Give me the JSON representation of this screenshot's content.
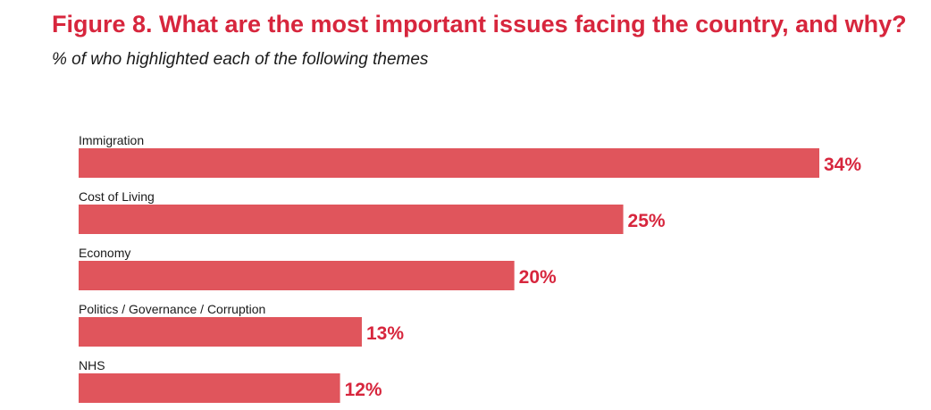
{
  "chart_data": {
    "type": "bar",
    "orientation": "horizontal",
    "title": "Figure 8. What are the most important issues facing the country, and why?",
    "subtitle": "% of who highlighted each of the following themes",
    "categories": [
      "Immigration",
      "Cost of Living",
      "Economy",
      "Politics / Governance / Corruption",
      "NHS"
    ],
    "values": [
      34,
      25,
      20,
      13,
      12
    ],
    "value_labels": [
      "34%",
      "25%",
      "20%",
      "13%",
      "12%"
    ],
    "xlabel": "",
    "ylabel": "",
    "xlim": [
      0,
      34
    ],
    "grid": false,
    "legend": "none",
    "bar_color": "#e0555c",
    "value_label_color": "#d7263d"
  }
}
